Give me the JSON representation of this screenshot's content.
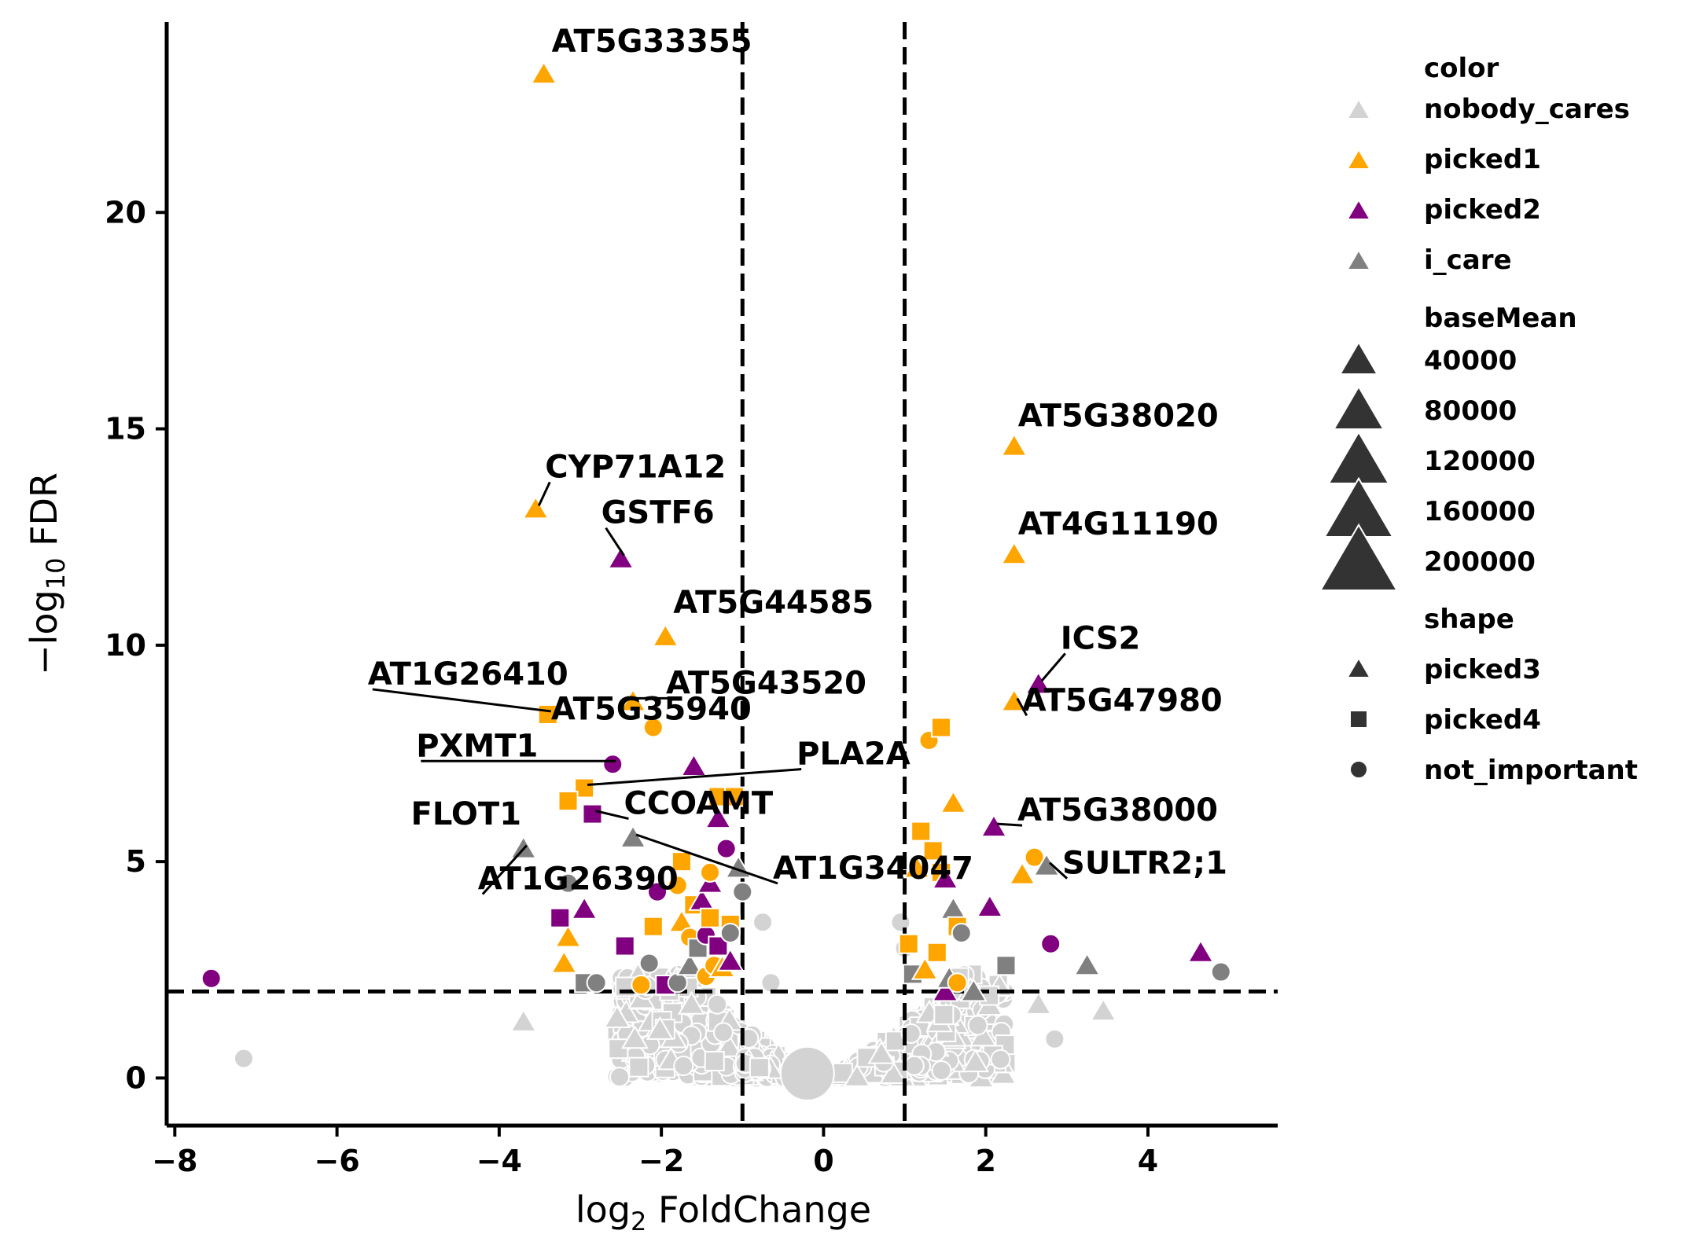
{
  "chart_data": {
    "type": "scatter",
    "title": "",
    "xlabel": {
      "base": "log",
      "sub": "2",
      "rest": " FoldChange"
    },
    "ylabel": {
      "pre": "−log",
      "sub": "10",
      "rest": " FDR"
    },
    "xlim": [
      -8.1,
      5.6
    ],
    "ylim": [
      -1.1,
      24.4
    ],
    "xticks": [
      -8,
      -6,
      -4,
      -2,
      0,
      2,
      4
    ],
    "xtick_labels": [
      "−8",
      "−6",
      "−4",
      "−2",
      "0",
      "2",
      "4"
    ],
    "yticks": [
      0,
      5,
      10,
      15,
      20
    ],
    "ytick_labels": [
      "0",
      "5",
      "10",
      "15",
      "20"
    ],
    "thresholds": {
      "x": [
        -1,
        1
      ],
      "y": 2
    },
    "colors": {
      "nobody_cares": "#d3d3d3",
      "picked1": "#ffa500",
      "picked2": "#800080",
      "i_care": "#808080"
    },
    "legend": {
      "placement": "right, outside plot",
      "color_title": "color",
      "color_items": [
        "nobody_cares",
        "picked1",
        "picked2",
        "i_care"
      ],
      "size_title": "baseMean",
      "size_items": [
        "40000",
        "80000",
        "120000",
        "160000",
        "200000"
      ],
      "shape_title": "shape",
      "shape_items": [
        {
          "label": "picked3",
          "marker": "triangle"
        },
        {
          "label": "picked4",
          "marker": "square"
        },
        {
          "label": "not_important",
          "marker": "circle"
        }
      ]
    },
    "labeled_points": [
      {
        "label": "AT5G33355",
        "x": -3.45,
        "y": 23.2,
        "color": "picked1",
        "shape": "triangle"
      },
      {
        "label": "CYP71A12",
        "x": -3.55,
        "y": 13.15,
        "color": "picked1",
        "shape": "triangle"
      },
      {
        "label": "GSTF6",
        "x": -2.5,
        "y": 12.0,
        "color": "picked2",
        "shape": "triangle"
      },
      {
        "label": "AT5G44585",
        "x": -1.95,
        "y": 10.2,
        "color": "picked1",
        "shape": "triangle"
      },
      {
        "label": "AT5G43520",
        "x": -2.35,
        "y": 8.7,
        "color": "picked1",
        "shape": "triangle"
      },
      {
        "label": "AT1G26410",
        "x": -3.4,
        "y": 8.4,
        "color": "picked1",
        "shape": "square"
      },
      {
        "label": "AT5G35940",
        "x": -2.1,
        "y": 8.1,
        "color": "picked1",
        "shape": "circle"
      },
      {
        "label": "PXMT1",
        "x": -2.6,
        "y": 7.25,
        "color": "picked2",
        "shape": "circle"
      },
      {
        "label": "PLA2A",
        "x": -2.95,
        "y": 6.7,
        "color": "picked1",
        "shape": "square"
      },
      {
        "label": "FLOT1",
        "x": -3.15,
        "y": 6.4,
        "color": "picked1",
        "shape": "square"
      },
      {
        "label": "CCOAMT",
        "x": -2.85,
        "y": 6.1,
        "color": "picked2",
        "shape": "square"
      },
      {
        "label": "AT1G26390",
        "x": -3.7,
        "y": 5.3,
        "color": "i_care",
        "shape": "triangle"
      },
      {
        "label": "AT1G34047",
        "x": -2.35,
        "y": 5.55,
        "color": "i_care",
        "shape": "triangle"
      },
      {
        "label": "AT5G38020",
        "x": 2.35,
        "y": 14.6,
        "color": "picked1",
        "shape": "triangle"
      },
      {
        "label": "AT4G11190",
        "x": 2.35,
        "y": 12.1,
        "color": "picked1",
        "shape": "triangle"
      },
      {
        "label": "ICS2",
        "x": 2.65,
        "y": 9.1,
        "color": "picked2",
        "shape": "triangle"
      },
      {
        "label": "AT5G47980",
        "x": 2.35,
        "y": 8.7,
        "color": "picked1",
        "shape": "triangle"
      },
      {
        "label": "AT5G38000",
        "x": 2.1,
        "y": 5.8,
        "color": "picked2",
        "shape": "triangle"
      },
      {
        "label": "SULTR2;1",
        "x": 2.75,
        "y": 4.9,
        "color": "i_care",
        "shape": "triangle"
      }
    ],
    "significant_points": [
      {
        "x": -7.55,
        "y": 2.3,
        "color": "picked2",
        "shape": "circle"
      },
      {
        "x": -3.15,
        "y": 3.25,
        "color": "picked1",
        "shape": "triangle"
      },
      {
        "x": -3.2,
        "y": 2.65,
        "color": "picked1",
        "shape": "triangle"
      },
      {
        "x": -3.25,
        "y": 3.7,
        "color": "picked2",
        "shape": "square"
      },
      {
        "x": -2.95,
        "y": 3.9,
        "color": "picked2",
        "shape": "triangle"
      },
      {
        "x": -3.15,
        "y": 4.5,
        "color": "i_care",
        "shape": "circle"
      },
      {
        "x": -2.95,
        "y": 2.2,
        "color": "i_care",
        "shape": "square"
      },
      {
        "x": -2.8,
        "y": 2.2,
        "color": "i_care",
        "shape": "circle"
      },
      {
        "x": -2.45,
        "y": 3.05,
        "color": "picked2",
        "shape": "square"
      },
      {
        "x": -2.25,
        "y": 2.15,
        "color": "picked1",
        "shape": "circle"
      },
      {
        "x": -2.15,
        "y": 2.65,
        "color": "i_care",
        "shape": "circle"
      },
      {
        "x": -2.1,
        "y": 3.5,
        "color": "picked1",
        "shape": "square"
      },
      {
        "x": -2.05,
        "y": 4.3,
        "color": "picked2",
        "shape": "circle"
      },
      {
        "x": -1.95,
        "y": 2.15,
        "color": "picked2",
        "shape": "square"
      },
      {
        "x": -1.8,
        "y": 2.2,
        "color": "i_care",
        "shape": "circle"
      },
      {
        "x": -1.8,
        "y": 4.45,
        "color": "picked1",
        "shape": "circle"
      },
      {
        "x": -1.75,
        "y": 5.0,
        "color": "picked1",
        "shape": "square"
      },
      {
        "x": -1.75,
        "y": 3.6,
        "color": "picked1",
        "shape": "triangle"
      },
      {
        "x": -1.65,
        "y": 3.25,
        "color": "picked1",
        "shape": "circle"
      },
      {
        "x": -1.65,
        "y": 2.6,
        "color": "i_care",
        "shape": "triangle"
      },
      {
        "x": -1.6,
        "y": 4.0,
        "color": "picked1",
        "shape": "square"
      },
      {
        "x": -1.55,
        "y": 3.0,
        "color": "i_care",
        "shape": "square"
      },
      {
        "x": -1.5,
        "y": 4.1,
        "color": "picked2",
        "shape": "triangle"
      },
      {
        "x": -1.45,
        "y": 3.3,
        "color": "picked2",
        "shape": "circle"
      },
      {
        "x": -1.45,
        "y": 2.35,
        "color": "picked1",
        "shape": "circle"
      },
      {
        "x": -1.4,
        "y": 3.7,
        "color": "picked1",
        "shape": "square"
      },
      {
        "x": -1.4,
        "y": 4.5,
        "color": "picked2",
        "shape": "triangle"
      },
      {
        "x": -1.4,
        "y": 4.75,
        "color": "picked1",
        "shape": "circle"
      },
      {
        "x": -1.35,
        "y": 2.6,
        "color": "picked1",
        "shape": "circle"
      },
      {
        "x": -1.3,
        "y": 3.05,
        "color": "picked2",
        "shape": "square"
      },
      {
        "x": -1.3,
        "y": 6.0,
        "color": "picked2",
        "shape": "triangle"
      },
      {
        "x": -1.3,
        "y": 6.5,
        "color": "picked1",
        "shape": "square"
      },
      {
        "x": -1.25,
        "y": 2.55,
        "color": "picked1",
        "shape": "triangle"
      },
      {
        "x": -1.2,
        "y": 5.3,
        "color": "picked2",
        "shape": "circle"
      },
      {
        "x": -1.15,
        "y": 3.55,
        "color": "picked1",
        "shape": "square"
      },
      {
        "x": -1.15,
        "y": 3.35,
        "color": "i_care",
        "shape": "circle"
      },
      {
        "x": -1.15,
        "y": 2.7,
        "color": "picked2",
        "shape": "triangle"
      },
      {
        "x": -1.1,
        "y": 6.5,
        "color": "picked1",
        "shape": "square"
      },
      {
        "x": -1.05,
        "y": 4.85,
        "color": "i_care",
        "shape": "triangle"
      },
      {
        "x": -1.0,
        "y": 4.3,
        "color": "i_care",
        "shape": "circle"
      },
      {
        "x": -1.6,
        "y": 7.2,
        "color": "picked2",
        "shape": "triangle"
      },
      {
        "x": 1.05,
        "y": 3.1,
        "color": "picked1",
        "shape": "square"
      },
      {
        "x": 1.1,
        "y": 2.4,
        "color": "i_care",
        "shape": "square"
      },
      {
        "x": 1.15,
        "y": 4.85,
        "color": "picked1",
        "shape": "triangle"
      },
      {
        "x": 1.2,
        "y": 5.7,
        "color": "picked1",
        "shape": "square"
      },
      {
        "x": 1.25,
        "y": 2.5,
        "color": "picked1",
        "shape": "triangle"
      },
      {
        "x": 1.3,
        "y": 7.8,
        "color": "picked1",
        "shape": "circle"
      },
      {
        "x": 1.35,
        "y": 5.25,
        "color": "picked1",
        "shape": "square"
      },
      {
        "x": 1.4,
        "y": 2.9,
        "color": "picked1",
        "shape": "square"
      },
      {
        "x": 1.45,
        "y": 4.75,
        "color": "picked1",
        "shape": "square"
      },
      {
        "x": 1.45,
        "y": 8.1,
        "color": "picked1",
        "shape": "square"
      },
      {
        "x": 1.5,
        "y": 4.6,
        "color": "picked2",
        "shape": "triangle"
      },
      {
        "x": 1.5,
        "y": 2.0,
        "color": "picked2",
        "shape": "triangle"
      },
      {
        "x": 1.55,
        "y": 2.3,
        "color": "i_care",
        "shape": "triangle"
      },
      {
        "x": 1.6,
        "y": 6.35,
        "color": "picked1",
        "shape": "triangle"
      },
      {
        "x": 1.6,
        "y": 3.9,
        "color": "i_care",
        "shape": "triangle"
      },
      {
        "x": 1.65,
        "y": 3.5,
        "color": "picked1",
        "shape": "square"
      },
      {
        "x": 1.65,
        "y": 2.2,
        "color": "picked1",
        "shape": "circle"
      },
      {
        "x": 1.7,
        "y": 3.35,
        "color": "i_care",
        "shape": "circle"
      },
      {
        "x": 1.85,
        "y": 2.0,
        "color": "i_care",
        "shape": "triangle"
      },
      {
        "x": 2.05,
        "y": 3.95,
        "color": "picked2",
        "shape": "triangle"
      },
      {
        "x": 2.25,
        "y": 2.6,
        "color": "i_care",
        "shape": "square"
      },
      {
        "x": 2.45,
        "y": 4.7,
        "color": "picked1",
        "shape": "triangle"
      },
      {
        "x": 2.6,
        "y": 5.1,
        "color": "picked1",
        "shape": "circle"
      },
      {
        "x": 2.8,
        "y": 3.1,
        "color": "picked2",
        "shape": "circle"
      },
      {
        "x": 3.25,
        "y": 2.6,
        "color": "i_care",
        "shape": "triangle"
      },
      {
        "x": 4.65,
        "y": 2.9,
        "color": "picked2",
        "shape": "triangle"
      },
      {
        "x": 4.9,
        "y": 2.45,
        "color": "i_care",
        "shape": "circle"
      }
    ],
    "background_points": [
      {
        "x": -7.15,
        "y": 0.45,
        "color": "nobody_cares",
        "shape": "circle"
      },
      {
        "x": -3.7,
        "y": 1.3,
        "color": "nobody_cares",
        "shape": "triangle"
      },
      {
        "x": 2.65,
        "y": 1.7,
        "color": "nobody_cares",
        "shape": "triangle"
      },
      {
        "x": 2.85,
        "y": 0.9,
        "color": "nobody_cares",
        "shape": "circle"
      },
      {
        "x": 3.45,
        "y": 1.55,
        "color": "nobody_cares",
        "shape": "triangle"
      },
      {
        "x": -0.75,
        "y": 3.6,
        "color": "nobody_cares",
        "shape": "circle"
      },
      {
        "x": -0.65,
        "y": 2.2,
        "color": "nobody_cares",
        "shape": "circle"
      },
      {
        "x": 0.95,
        "y": 3.6,
        "color": "nobody_cares",
        "shape": "circle"
      },
      {
        "x": 1.0,
        "y": 3.0,
        "color": "nobody_cares",
        "shape": "circle"
      },
      {
        "x": -0.2,
        "y": 0.1,
        "color": "nobody_cares",
        "shape": "circle",
        "baseMean": "large"
      }
    ]
  }
}
